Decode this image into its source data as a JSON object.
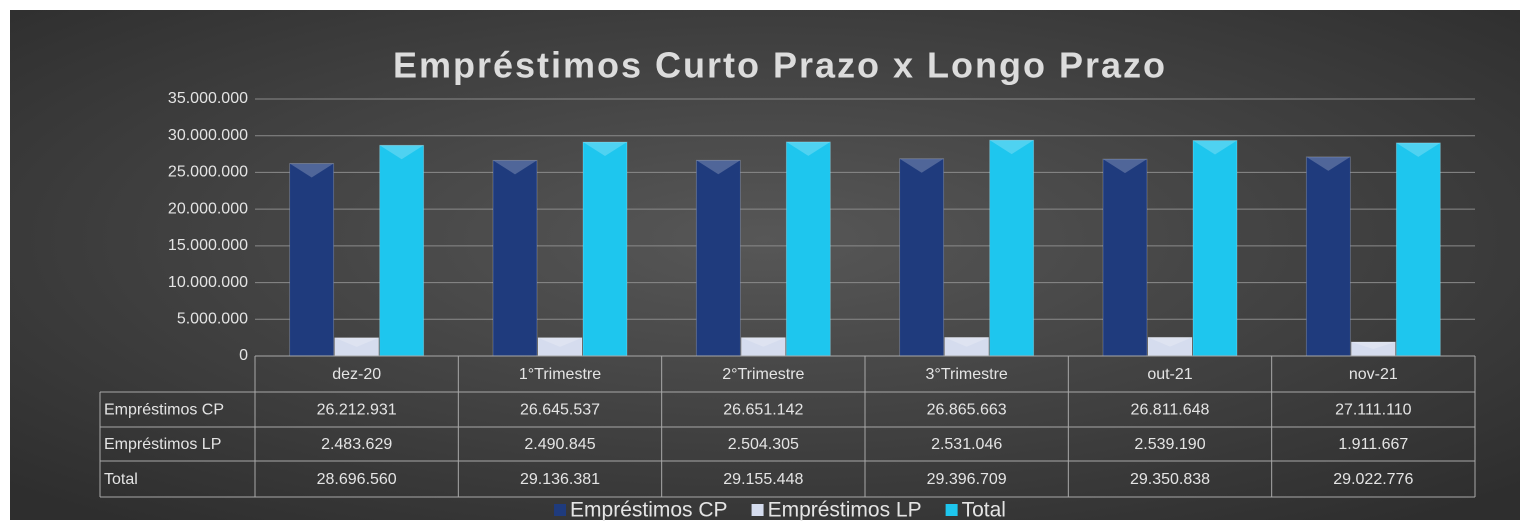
{
  "chart_data": {
    "type": "bar",
    "title": "Empréstimos Curto Prazo x Longo Prazo",
    "categories": [
      "dez-20",
      "1°Trimestre",
      "2°Trimestre",
      "3°Trimestre",
      "out-21",
      "nov-21"
    ],
    "series": [
      {
        "name": "Empréstimos CP",
        "color": "#1f3b7d",
        "values": [
          26212931,
          26645537,
          26651142,
          26865663,
          26811648,
          27111110
        ],
        "value_labels": [
          "26.212.931",
          "26.645.537",
          "26.651.142",
          "26.865.663",
          "26.811.648",
          "27.111.110"
        ]
      },
      {
        "name": "Empréstimos LP",
        "color": "#d5dcee",
        "values": [
          2483629,
          2490845,
          2504305,
          2531046,
          2539190,
          1911667
        ],
        "value_labels": [
          "2.483.629",
          "2.490.845",
          "2.504.305",
          "2.531.046",
          "2.539.190",
          "1.911.667"
        ]
      },
      {
        "name": "Total",
        "color": "#1ec6ee",
        "values": [
          28696560,
          29136381,
          29155448,
          29396709,
          29350838,
          29022776
        ],
        "value_labels": [
          "28.696.560",
          "29.136.381",
          "29.155.448",
          "29.396.709",
          "29.350.838",
          "29.022.776"
        ]
      }
    ],
    "ylim": [
      0,
      35000000
    ],
    "yticks": [
      0,
      {
        "value": 5000000,
        "label": "5.000.000"
      },
      {
        "value": 10000000,
        "label": "10.000.000"
      },
      {
        "value": 15000000,
        "label": "15.000.000"
      },
      {
        "value": 20000000,
        "label": "20.000.000"
      },
      {
        "value": 25000000,
        "label": "25.000.000"
      },
      {
        "value": 30000000,
        "label": "30.000.000"
      },
      {
        "value": 35000000,
        "label": "35.000.000"
      }
    ],
    "grid": true,
    "legend": "bottom"
  }
}
